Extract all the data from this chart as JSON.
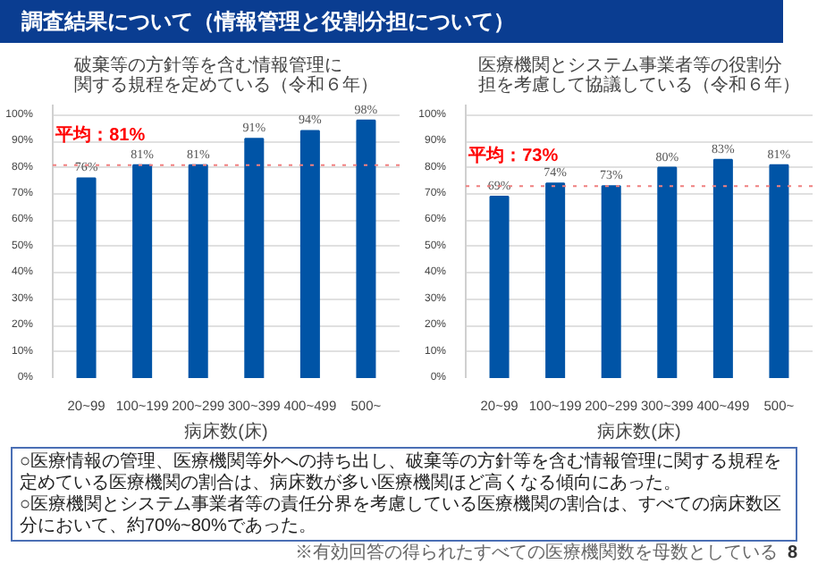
{
  "chart_data": [
    {
      "type": "bar",
      "title": "破棄等の方針等を含む情報管理に関する規程を定めている（令和６年）",
      "xlabel": "病床数(床)",
      "categories": [
        "20~99",
        "100~199",
        "200~299",
        "300~399",
        "400~499",
        "500~"
      ],
      "values": [
        76,
        81,
        81,
        91,
        94,
        98
      ],
      "value_labels": [
        "76%",
        "81%",
        "81%",
        "91%",
        "94%",
        "98%"
      ],
      "color": "#0054a6",
      "ylim": [
        0,
        104
      ],
      "yticks": [
        {
          "value": 0,
          "label": "0%"
        },
        {
          "value": 10,
          "label": "10%"
        },
        {
          "value": 20,
          "label": "20%"
        },
        {
          "value": 30,
          "label": "30%"
        },
        {
          "value": 40,
          "label": "40%"
        },
        {
          "value": 50,
          "label": "50%"
        },
        {
          "value": 60,
          "label": "60%"
        },
        {
          "value": 70,
          "label": "70%"
        },
        {
          "value": 80,
          "label": "80%"
        },
        {
          "value": 90,
          "label": "90%"
        },
        {
          "value": 100,
          "label": "100%"
        }
      ],
      "grid": "y",
      "ref_lines": [
        {
          "axis": "y",
          "value": 81,
          "label": "平均：81%",
          "color": "#f08080",
          "line_style": "dotted"
        }
      ],
      "annotations": [
        "調査結果について（情報管理と役割分担について）",
        "○医療情報の管理、医療機関等外への持ち出し、破棄等の方針等を含む情報管理に関する規程を定めている医療機関の割合は、病床数が多い医療機関ほど高くなる傾向にあった。"
      ]
    },
    {
      "type": "bar",
      "title": "医療機関とシステム事業者等の役割分担を考慮して協議している（令和６年）",
      "xlabel": "病床数(床)",
      "categories": [
        "20~99",
        "100~199",
        "200~299",
        "300~399",
        "400~499",
        "500~"
      ],
      "values": [
        69,
        74,
        73,
        80,
        83,
        81
      ],
      "value_labels": [
        "69%",
        "74%",
        "73%",
        "80%",
        "83%",
        "81%"
      ],
      "color": "#0054a6",
      "ylim": [
        0,
        104
      ],
      "yticks": [
        {
          "value": 0,
          "label": "0%"
        },
        {
          "value": 10,
          "label": "10%"
        },
        {
          "value": 20,
          "label": "20%"
        },
        {
          "value": 30,
          "label": "30%"
        },
        {
          "value": 40,
          "label": "40%"
        },
        {
          "value": 50,
          "label": "50%"
        },
        {
          "value": 60,
          "label": "60%"
        },
        {
          "value": 70,
          "label": "70%"
        },
        {
          "value": 80,
          "label": "80%"
        },
        {
          "value": 90,
          "label": "90%"
        },
        {
          "value": 100,
          "label": "100%"
        }
      ],
      "grid": "y",
      "ref_lines": [
        {
          "axis": "y",
          "value": 73,
          "label": "平均：73%",
          "color": "#f08080",
          "line_style": "dotted"
        }
      ],
      "annotations": [
        "○医療機関とシステム事業者等の責任分界を考慮している医療機関の割合は、すべての病床数区分において、約70%~80%であった。",
        "※有効回答の得られたすべての医療機関数を母数としている",
        "8"
      ]
    }
  ]
}
